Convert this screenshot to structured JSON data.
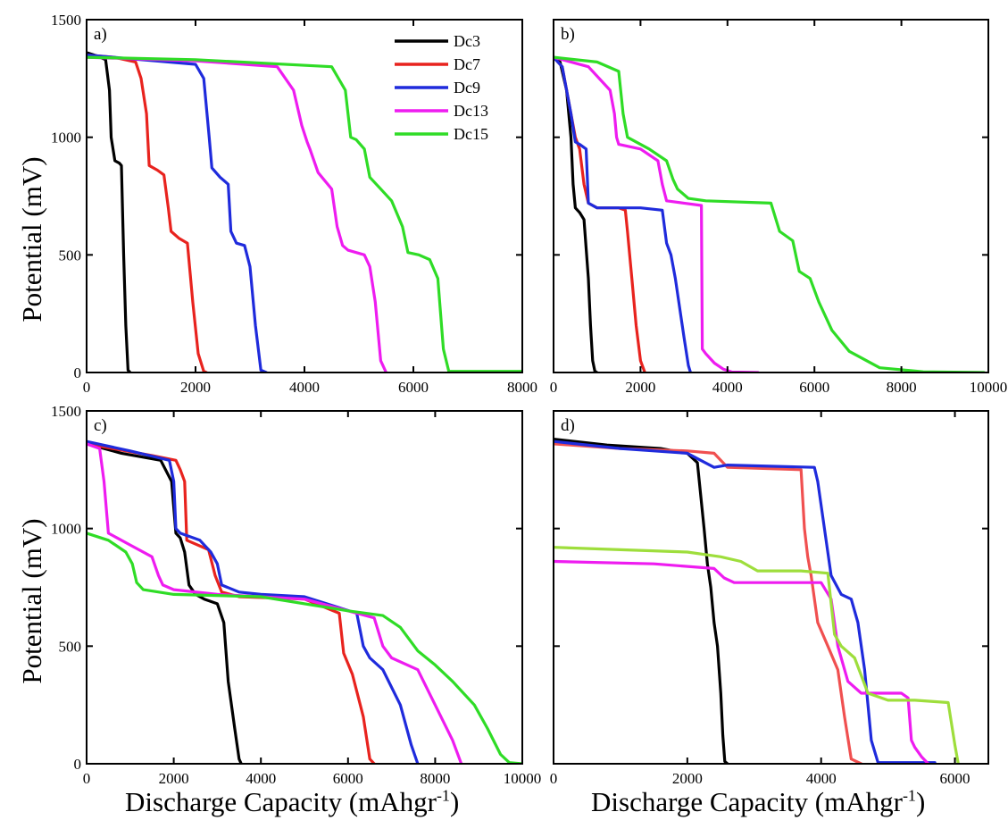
{
  "figure": {
    "y_axis_label": "Potential (mV)",
    "x_axis_label_main": "Discharge Capacity (mAhgr",
    "x_axis_label_sup": "-1",
    "x_axis_label_close": ")"
  },
  "series_styles": {
    "Dc3": "#000000",
    "Dc7": "#e8231e",
    "Dc9": "#1f2bdc",
    "Dc13": "#ee1cf0",
    "Dc15": "#2fdc26"
  },
  "panel_d_colors": {
    "Dc3": "#000000",
    "Dc7": "#f05050",
    "Dc9": "#1f2bdc",
    "Dc13": "#ee1cf0",
    "Dc15": "#9ede3c"
  },
  "chart_data": [
    {
      "type": "line",
      "panel": "a)",
      "xlim": [
        0,
        8000
      ],
      "ylim": [
        0,
        1500
      ],
      "xticks": [
        0,
        2000,
        4000,
        6000,
        8000
      ],
      "yticks": [
        0,
        500,
        1000,
        1500
      ],
      "legend": {
        "placement": "top-right",
        "entries": [
          "Dc3",
          "Dc7",
          "Dc9",
          "Dc13",
          "Dc15"
        ]
      },
      "series": [
        {
          "name": "Dc3",
          "x": [
            0,
            200,
            350,
            420,
            450,
            520,
            600,
            640,
            680,
            720,
            760,
            800
          ],
          "y": [
            1360,
            1345,
            1330,
            1200,
            1000,
            900,
            890,
            880,
            500,
            200,
            10,
            0
          ]
        },
        {
          "name": "Dc7",
          "x": [
            0,
            500,
            900,
            1000,
            1100,
            1150,
            1300,
            1420,
            1500,
            1550,
            1700,
            1850,
            1950,
            2050,
            2150,
            2200
          ],
          "y": [
            1350,
            1340,
            1320,
            1250,
            1100,
            880,
            860,
            840,
            700,
            600,
            570,
            550,
            300,
            80,
            5,
            0
          ]
        },
        {
          "name": "Dc9",
          "x": [
            0,
            1000,
            2000,
            2150,
            2250,
            2300,
            2450,
            2600,
            2650,
            2750,
            2900,
            3000,
            3100,
            3200,
            3300
          ],
          "y": [
            1350,
            1330,
            1310,
            1250,
            1000,
            870,
            830,
            800,
            600,
            550,
            540,
            450,
            200,
            10,
            0
          ]
        },
        {
          "name": "Dc13",
          "x": [
            0,
            2000,
            3500,
            3800,
            3950,
            4050,
            4100,
            4250,
            4500,
            4600,
            4700,
            4800,
            5100,
            5200,
            5300,
            5400,
            5500
          ],
          "y": [
            1340,
            1325,
            1300,
            1200,
            1050,
            980,
            950,
            850,
            780,
            620,
            540,
            520,
            500,
            450,
            300,
            50,
            0
          ]
        },
        {
          "name": "Dc15",
          "x": [
            0,
            2000,
            4500,
            4750,
            4850,
            4950,
            5100,
            5200,
            5400,
            5600,
            5800,
            5900,
            6100,
            6300,
            6450,
            6550,
            6650,
            8000
          ],
          "y": [
            1340,
            1330,
            1300,
            1200,
            1000,
            990,
            950,
            830,
            780,
            730,
            620,
            510,
            500,
            480,
            400,
            100,
            5,
            5
          ]
        }
      ]
    },
    {
      "type": "line",
      "panel": "b)",
      "xlim": [
        0,
        10000
      ],
      "ylim": [
        0,
        1500
      ],
      "xticks": [
        0,
        2000,
        4000,
        6000,
        8000,
        10000
      ],
      "yticks": [
        0,
        500,
        1000,
        1500
      ],
      "series": [
        {
          "name": "Dc3",
          "x": [
            0,
            150,
            300,
            400,
            450,
            500,
            600,
            700,
            800,
            850,
            900,
            950,
            1000
          ],
          "y": [
            1340,
            1320,
            1200,
            1000,
            800,
            700,
            680,
            650,
            400,
            200,
            50,
            5,
            0
          ]
        },
        {
          "name": "Dc7",
          "x": [
            0,
            200,
            400,
            500,
            600,
            700,
            800,
            1000,
            1500,
            1650,
            1700,
            1800,
            1900,
            2000,
            2100
          ],
          "y": [
            1340,
            1300,
            1100,
            1000,
            950,
            800,
            720,
            700,
            700,
            690,
            600,
            400,
            200,
            50,
            0
          ]
        },
        {
          "name": "Dc9",
          "x": [
            0,
            200,
            400,
            500,
            600,
            750,
            800,
            1000,
            2000,
            2500,
            2600,
            2700,
            2800,
            3000,
            3100,
            3150
          ],
          "y": [
            1340,
            1300,
            1100,
            980,
            970,
            950,
            720,
            700,
            700,
            690,
            550,
            500,
            400,
            150,
            30,
            0
          ]
        },
        {
          "name": "Dc13",
          "x": [
            0,
            800,
            1300,
            1400,
            1450,
            1500,
            2000,
            2400,
            2500,
            2600,
            3000,
            3400,
            3420,
            3500,
            3700,
            3900,
            4100,
            4700
          ],
          "y": [
            1340,
            1300,
            1200,
            1100,
            1000,
            970,
            950,
            900,
            800,
            730,
            720,
            710,
            100,
            80,
            40,
            15,
            2,
            0
          ]
        },
        {
          "name": "Dc15",
          "x": [
            0,
            1000,
            1500,
            1600,
            1700,
            2200,
            2600,
            2750,
            2850,
            3100,
            3500,
            5000,
            5200,
            5500,
            5650,
            5900,
            6100,
            6400,
            6800,
            7500,
            8500,
            9900
          ],
          "y": [
            1340,
            1320,
            1280,
            1100,
            1000,
            950,
            900,
            820,
            780,
            740,
            730,
            720,
            600,
            560,
            430,
            400,
            300,
            180,
            90,
            20,
            3,
            0
          ]
        }
      ]
    },
    {
      "type": "line",
      "panel": "c)",
      "xlim": [
        0,
        10000
      ],
      "ylim": [
        0,
        1500
      ],
      "xticks": [
        0,
        2000,
        4000,
        6000,
        8000,
        10000
      ],
      "yticks": [
        0,
        500,
        1000,
        1500
      ],
      "series": [
        {
          "name": "Dc3",
          "x": [
            0,
            800,
            1700,
            1950,
            2050,
            2150,
            2250,
            2350,
            2500,
            2700,
            3000,
            3150,
            3250,
            3400,
            3500,
            3550
          ],
          "y": [
            1360,
            1320,
            1290,
            1200,
            980,
            960,
            900,
            760,
            720,
            700,
            680,
            600,
            350,
            150,
            20,
            0
          ]
        },
        {
          "name": "Dc7",
          "x": [
            0,
            1500,
            2050,
            2150,
            2250,
            2300,
            2800,
            2950,
            3100,
            3500,
            5000,
            5800,
            5900,
            6100,
            6350,
            6500,
            6600
          ],
          "y": [
            1360,
            1310,
            1290,
            1250,
            1200,
            950,
            910,
            800,
            730,
            710,
            700,
            640,
            470,
            380,
            200,
            20,
            0
          ]
        },
        {
          "name": "Dc9",
          "x": [
            0,
            1000,
            1900,
            2000,
            2050,
            2150,
            2600,
            2850,
            3000,
            3100,
            3500,
            4000,
            5000,
            6200,
            6350,
            6500,
            6800,
            7200,
            7450,
            7600
          ],
          "y": [
            1370,
            1330,
            1290,
            1200,
            1000,
            980,
            950,
            900,
            850,
            760,
            730,
            720,
            710,
            640,
            500,
            450,
            400,
            250,
            80,
            0
          ]
        },
        {
          "name": "Dc13",
          "x": [
            0,
            300,
            400,
            500,
            700,
            1000,
            1500,
            1650,
            1750,
            2000,
            3000,
            5000,
            6000,
            6600,
            6800,
            7000,
            7600,
            8000,
            8400,
            8600
          ],
          "y": [
            1360,
            1340,
            1200,
            980,
            960,
            930,
            880,
            800,
            760,
            740,
            720,
            700,
            650,
            620,
            500,
            450,
            400,
            250,
            100,
            0
          ]
        },
        {
          "name": "Dc15",
          "x": [
            0,
            500,
            900,
            1050,
            1150,
            1300,
            2000,
            4000,
            6000,
            6800,
            7200,
            7600,
            8000,
            8400,
            8900,
            9200,
            9500,
            9700,
            10000
          ],
          "y": [
            980,
            950,
            900,
            850,
            770,
            740,
            720,
            710,
            650,
            630,
            580,
            480,
            420,
            350,
            250,
            150,
            40,
            5,
            0
          ]
        }
      ]
    },
    {
      "type": "line",
      "panel": "d)",
      "xlim": [
        0,
        6500
      ],
      "ylim": [
        0,
        1500
      ],
      "xticks": [
        0,
        2000,
        4000,
        6000
      ],
      "yticks": [
        0,
        500,
        1000,
        1500
      ],
      "series": [
        {
          "name": "Dc3",
          "x": [
            0,
            800,
            1600,
            2000,
            2150,
            2250,
            2300,
            2350,
            2400,
            2450,
            2500,
            2530,
            2560,
            2600
          ],
          "y": [
            1380,
            1355,
            1340,
            1320,
            1280,
            1000,
            850,
            750,
            600,
            500,
            300,
            120,
            10,
            0
          ]
        },
        {
          "name": "Dc7",
          "x": [
            0,
            1000,
            2000,
            2400,
            2600,
            3700,
            3750,
            3800,
            3850,
            3950,
            4100,
            4250,
            4350,
            4450,
            4600
          ],
          "y": [
            1360,
            1340,
            1330,
            1320,
            1260,
            1250,
            1000,
            880,
            800,
            600,
            500,
            400,
            200,
            20,
            0
          ]
        },
        {
          "name": "Dc9",
          "x": [
            0,
            1000,
            2000,
            2200,
            2400,
            2600,
            3900,
            3950,
            4050,
            4150,
            4300,
            4450,
            4550,
            4650,
            4750,
            4850,
            5700
          ],
          "y": [
            1370,
            1340,
            1320,
            1290,
            1260,
            1270,
            1260,
            1200,
            1000,
            800,
            720,
            700,
            600,
            400,
            100,
            5,
            5
          ]
        },
        {
          "name": "Dc13",
          "x": [
            0,
            1500,
            2400,
            2550,
            2700,
            3000,
            3500,
            4000,
            4150,
            4250,
            4400,
            4600,
            5200,
            5300,
            5350,
            5400,
            5500,
            5600
          ],
          "y": [
            860,
            850,
            830,
            790,
            770,
            770,
            770,
            770,
            700,
            500,
            350,
            300,
            300,
            280,
            100,
            70,
            30,
            0
          ]
        },
        {
          "name": "Dc15",
          "x": [
            0,
            1000,
            2000,
            2500,
            2800,
            3050,
            3300,
            3700,
            4100,
            4200,
            4300,
            4500,
            4700,
            5000,
            5400,
            5900,
            6000,
            6050
          ],
          "y": [
            920,
            910,
            900,
            880,
            860,
            820,
            820,
            820,
            810,
            550,
            500,
            450,
            300,
            270,
            270,
            260,
            80,
            0
          ]
        }
      ]
    }
  ]
}
